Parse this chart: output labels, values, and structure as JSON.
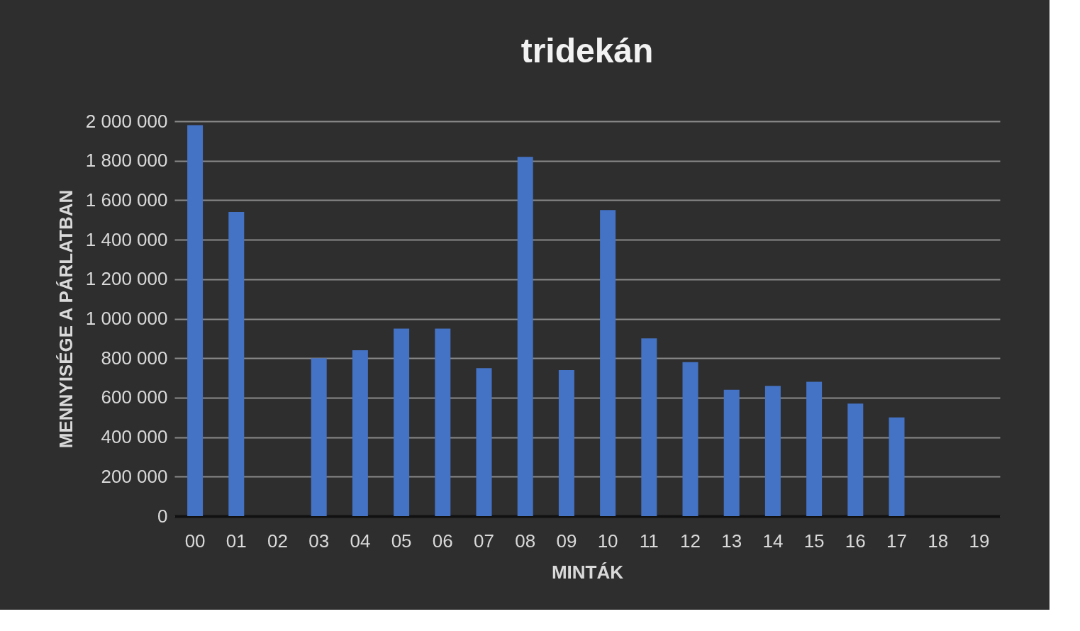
{
  "chart_data": {
    "type": "bar",
    "title": "tridekán",
    "xlabel": "MINTÁK",
    "ylabel": "MENNYISÉGE A PÁRLATBAN",
    "categories": [
      "00",
      "01",
      "02",
      "03",
      "04",
      "05",
      "06",
      "07",
      "08",
      "09",
      "10",
      "11",
      "12",
      "13",
      "14",
      "15",
      "16",
      "17",
      "18",
      "19"
    ],
    "values": [
      1980000,
      1540000,
      0,
      800000,
      840000,
      950000,
      950000,
      750000,
      1820000,
      740000,
      1550000,
      900000,
      780000,
      640000,
      660000,
      680000,
      570000,
      500000,
      0,
      0
    ],
    "color": "#4472c4",
    "ylim": [
      0,
      2000000
    ],
    "yticks": [
      {
        "value": 0,
        "label": "0"
      },
      {
        "value": 200000,
        "label": "200 000"
      },
      {
        "value": 400000,
        "label": "400 000"
      },
      {
        "value": 600000,
        "label": "600 000"
      },
      {
        "value": 800000,
        "label": "800 000"
      },
      {
        "value": 1000000,
        "label": "1 000 000"
      },
      {
        "value": 1200000,
        "label": "1 200 000"
      },
      {
        "value": 1400000,
        "label": "1 400 000"
      },
      {
        "value": 1600000,
        "label": "1 600 000"
      },
      {
        "value": 1800000,
        "label": "1 800 000"
      },
      {
        "value": 2000000,
        "label": "2 000 000"
      }
    ],
    "grid": "y"
  }
}
